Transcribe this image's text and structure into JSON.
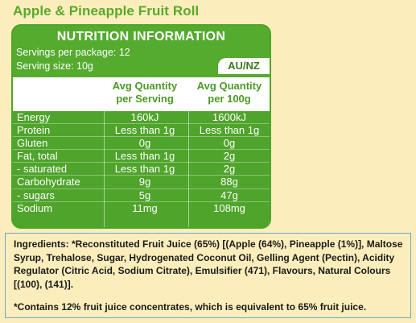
{
  "product_title": "Apple & Pineapple Fruit Roll",
  "panel": {
    "title": "NUTRITION INFORMATION",
    "servings_per_package": "Servings per package: 12",
    "serving_size": "Serving size: 10g",
    "region": "AU/NZ",
    "col1_line1": "Avg Quantity",
    "col1_line2": "per Serving",
    "col2_line1": "Avg Quantity",
    "col2_line2": "per 100g",
    "rows": [
      {
        "name": "Energy",
        "per_serving": "160kJ",
        "per_100g": "1600kJ"
      },
      {
        "name": "Protein",
        "per_serving": "Less than 1g",
        "per_100g": "Less than 1g"
      },
      {
        "name": "Gluten",
        "per_serving": "0g",
        "per_100g": "0g"
      },
      {
        "name": "Fat, total",
        "per_serving": "Less than 1g",
        "per_100g": "2g"
      },
      {
        "name": "- saturated",
        "per_serving": "Less than 1g",
        "per_100g": "2g"
      },
      {
        "name": "Carbohydrate",
        "per_serving": "9g",
        "per_100g": "88g"
      },
      {
        "name": "- sugars",
        "per_serving": "5g",
        "per_100g": "47g"
      },
      {
        "name": "Sodium",
        "per_serving": "11mg",
        "per_100g": "108mg"
      }
    ]
  },
  "ingredients": "Ingredients: *Reconstituted Fruit Juice (65%) [(Apple (64%), Pineapple (1%)], Maltose Syrup, Trehalose, Sugar, Hydrogenated Coconut Oil, Gelling Agent (Pectin), Acidity Regulator (Citric Acid, Sodium Citrate), Emulsifier (471), Flavours, Natural Colours [(100), (141)].",
  "footnote": "*Contains 12% fruit juice concentrates, which is equivalent to 65% fruit juice.",
  "colors": {
    "background": "#fbeebc",
    "panel_green": "#4fa42b",
    "title_green": "#5aa82c"
  }
}
